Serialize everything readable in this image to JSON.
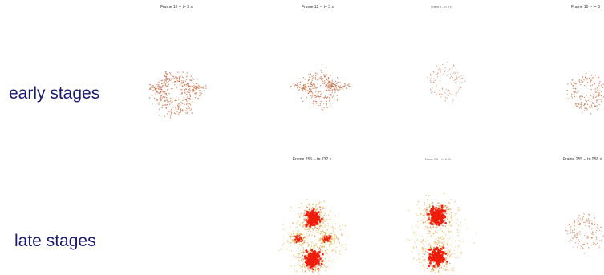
{
  "rows": {
    "early_label": "early stages",
    "late_label": "late stages"
  },
  "frames": {
    "early": [
      {
        "title": "Frame 10  --  t= 3 s"
      },
      {
        "title": "Frame 12  --  t= 3 s"
      },
      {
        "title": "Frame 8  --  t= 3 s"
      },
      {
        "title": "Frame 10  --  t= 3"
      }
    ],
    "late": [
      {
        "title": "Frame 255  --  t= 732 s"
      },
      {
        "title": "Frame 255  --  t= 1126 s"
      },
      {
        "title": "Frame 255  --  t= 958 s"
      }
    ]
  },
  "colors": {
    "background": "#ffffff",
    "label_text": "#1a1a6e",
    "particle_sparse": "#c06a40",
    "particle_halo": "#d9a020",
    "particle_core": "#ee1c0c"
  }
}
